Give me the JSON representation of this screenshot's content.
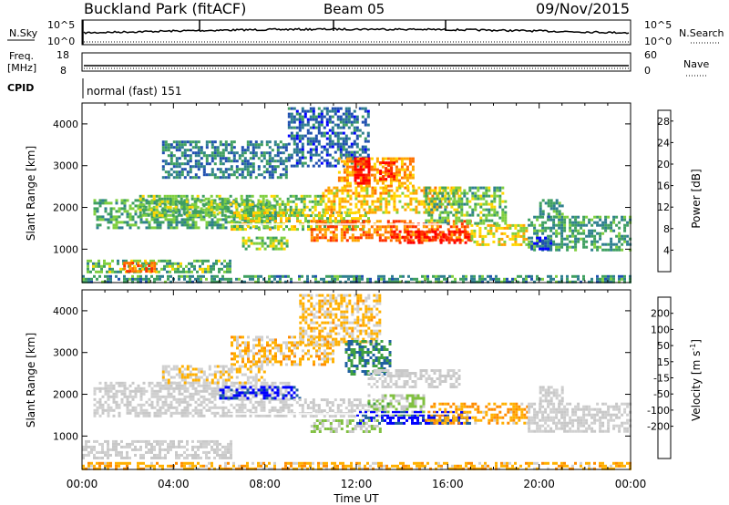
{
  "header": {
    "station": "Buckland Park (fitACF)",
    "beam": "Beam 05",
    "date": "09/Nov/2015"
  },
  "top_panels": {
    "nsky_label": "N.Sky",
    "nsearch_label": "N.Search",
    "noise_ticks": [
      "10^5",
      "10^0"
    ],
    "freq_label_1": "Freq.",
    "freq_label_2": "[MHz]",
    "freq_ticks": [
      "18",
      "8"
    ],
    "nave_label": "Nave",
    "nave_ticks": [
      "60",
      "0"
    ],
    "cpid_label": "CPID",
    "cpid_text": "normal (fast) 151"
  },
  "x_axis": {
    "label": "Time UT",
    "ticks": [
      "00:00",
      "04:00",
      "08:00",
      "12:00",
      "16:00",
      "20:00",
      "00:00"
    ]
  },
  "colors": {
    "power": [
      "#0000ff",
      "#2050b0",
      "#2f7f8f",
      "#3fa060",
      "#7fcf3f",
      "#ffd700",
      "#ffa500",
      "#ff7000",
      "#ff3000",
      "#ff0000"
    ],
    "velocity": [
      "#ff0000",
      "#ff4500",
      "#ff8c00",
      "#ffb000",
      "#d0d0d0",
      "#c8c8c8",
      "#80c040",
      "#40a040",
      "#2060a0",
      "#0000ff"
    ]
  },
  "chart_data": [
    {
      "type": "heatmap",
      "ylabel": "Slant Range [km]",
      "xlabel": "",
      "y_ticks": [
        "1000",
        "2000",
        "3000",
        "4000"
      ],
      "ylim": [
        200,
        4500
      ],
      "xlim_hours": [
        0,
        24
      ],
      "colorbar_label": "Power [dB]",
      "colorbar_ticks": [
        "4",
        "8",
        "12",
        "16",
        "20",
        "24",
        "28"
      ],
      "clim": [
        0,
        30
      ],
      "regions": [
        {
          "t0": 0.0,
          "t1": 24.0,
          "r0": 240,
          "r1": 380,
          "v": 9
        },
        {
          "t0": 0.2,
          "t1": 6.5,
          "r0": 450,
          "r1": 750,
          "v": 12
        },
        {
          "t0": 1.8,
          "t1": 3.2,
          "r0": 500,
          "r1": 700,
          "v": 22
        },
        {
          "t0": 0.5,
          "t1": 8.5,
          "r0": 1500,
          "r1": 2200,
          "v": 11
        },
        {
          "t0": 2.5,
          "t1": 10.5,
          "r0": 1800,
          "r1": 2300,
          "v": 13
        },
        {
          "t0": 3.5,
          "t1": 9.0,
          "r0": 2700,
          "r1": 3600,
          "v": 8
        },
        {
          "t0": 6.5,
          "t1": 12.5,
          "r0": 1500,
          "r1": 1900,
          "v": 15
        },
        {
          "t0": 9.0,
          "t1": 12.5,
          "r0": 3000,
          "r1": 4400,
          "v": 6
        },
        {
          "t0": 10.5,
          "t1": 16.5,
          "r0": 1900,
          "r1": 2500,
          "v": 18
        },
        {
          "t0": 11.2,
          "t1": 14.5,
          "r0": 2500,
          "r1": 3200,
          "v": 20
        },
        {
          "t0": 11.9,
          "t1": 12.6,
          "r0": 2600,
          "r1": 3200,
          "v": 28
        },
        {
          "t0": 13.0,
          "t1": 13.6,
          "r0": 2700,
          "r1": 3100,
          "v": 27
        },
        {
          "t0": 10.0,
          "t1": 17.0,
          "r0": 1200,
          "r1": 1700,
          "v": 22
        },
        {
          "t0": 13.5,
          "t1": 17.0,
          "r0": 1150,
          "r1": 1450,
          "v": 28
        },
        {
          "t0": 17.0,
          "t1": 19.5,
          "r0": 1100,
          "r1": 1600,
          "v": 16
        },
        {
          "t0": 15.0,
          "t1": 18.5,
          "r0": 1600,
          "r1": 2500,
          "v": 12
        },
        {
          "t0": 19.5,
          "t1": 24.0,
          "r0": 1000,
          "r1": 1800,
          "v": 10
        },
        {
          "t0": 20.0,
          "t1": 21.0,
          "r0": 1800,
          "r1": 2200,
          "v": 9
        },
        {
          "t0": 19.5,
          "t1": 20.5,
          "r0": 1000,
          "r1": 1300,
          "v": 4
        },
        {
          "t0": 7.0,
          "t1": 9.0,
          "r0": 1000,
          "r1": 1300,
          "v": 14
        }
      ]
    },
    {
      "type": "heatmap",
      "ylabel": "Slant Range [km]",
      "xlabel": "Time UT",
      "y_ticks": [
        "1000",
        "2000",
        "3000",
        "4000"
      ],
      "ylim": [
        200,
        4500
      ],
      "xlim_hours": [
        0,
        24
      ],
      "colorbar_label": "Velocity [m s^-1]",
      "colorbar_ticks": [
        "200",
        "100",
        "50",
        "15",
        "-15",
        "-50",
        "-100",
        "-200"
      ],
      "clim": [
        -250,
        250
      ],
      "regions": [
        {
          "t0": 0.0,
          "t1": 24.0,
          "r0": 240,
          "r1": 380,
          "v": -80
        },
        {
          "t0": 0.0,
          "t1": 6.5,
          "r0": 450,
          "r1": 900,
          "v": 0
        },
        {
          "t0": 0.5,
          "t1": 9.0,
          "r0": 1500,
          "r1": 2300,
          "v": 0
        },
        {
          "t0": 6.0,
          "t1": 9.5,
          "r0": 1900,
          "r1": 2200,
          "v": 220
        },
        {
          "t0": 6.5,
          "t1": 11.0,
          "r0": 2700,
          "r1": 3400,
          "v": -70
        },
        {
          "t0": 9.5,
          "t1": 13.0,
          "r0": 3200,
          "r1": 4400,
          "v": -60
        },
        {
          "t0": 9.0,
          "t1": 13.0,
          "r0": 1500,
          "r1": 1900,
          "v": 0
        },
        {
          "t0": 11.5,
          "t1": 13.5,
          "r0": 2500,
          "r1": 3300,
          "v": 150
        },
        {
          "t0": 12.5,
          "t1": 16.5,
          "r0": 2200,
          "r1": 2600,
          "v": 0
        },
        {
          "t0": 12.5,
          "t1": 15.0,
          "r0": 1500,
          "r1": 2000,
          "v": 60
        },
        {
          "t0": 12.0,
          "t1": 17.0,
          "r0": 1300,
          "r1": 1600,
          "v": 220
        },
        {
          "t0": 15.0,
          "t1": 19.5,
          "r0": 1300,
          "r1": 1800,
          "v": -90
        },
        {
          "t0": 10.0,
          "t1": 13.0,
          "r0": 1100,
          "r1": 1400,
          "v": 50
        },
        {
          "t0": 19.5,
          "t1": 24.0,
          "r0": 1100,
          "r1": 1800,
          "v": 0
        },
        {
          "t0": 20.0,
          "t1": 21.0,
          "r0": 1800,
          "r1": 2200,
          "v": 0
        },
        {
          "t0": 3.5,
          "t1": 8.0,
          "r0": 2300,
          "r1": 2700,
          "v": -40
        }
      ]
    }
  ]
}
